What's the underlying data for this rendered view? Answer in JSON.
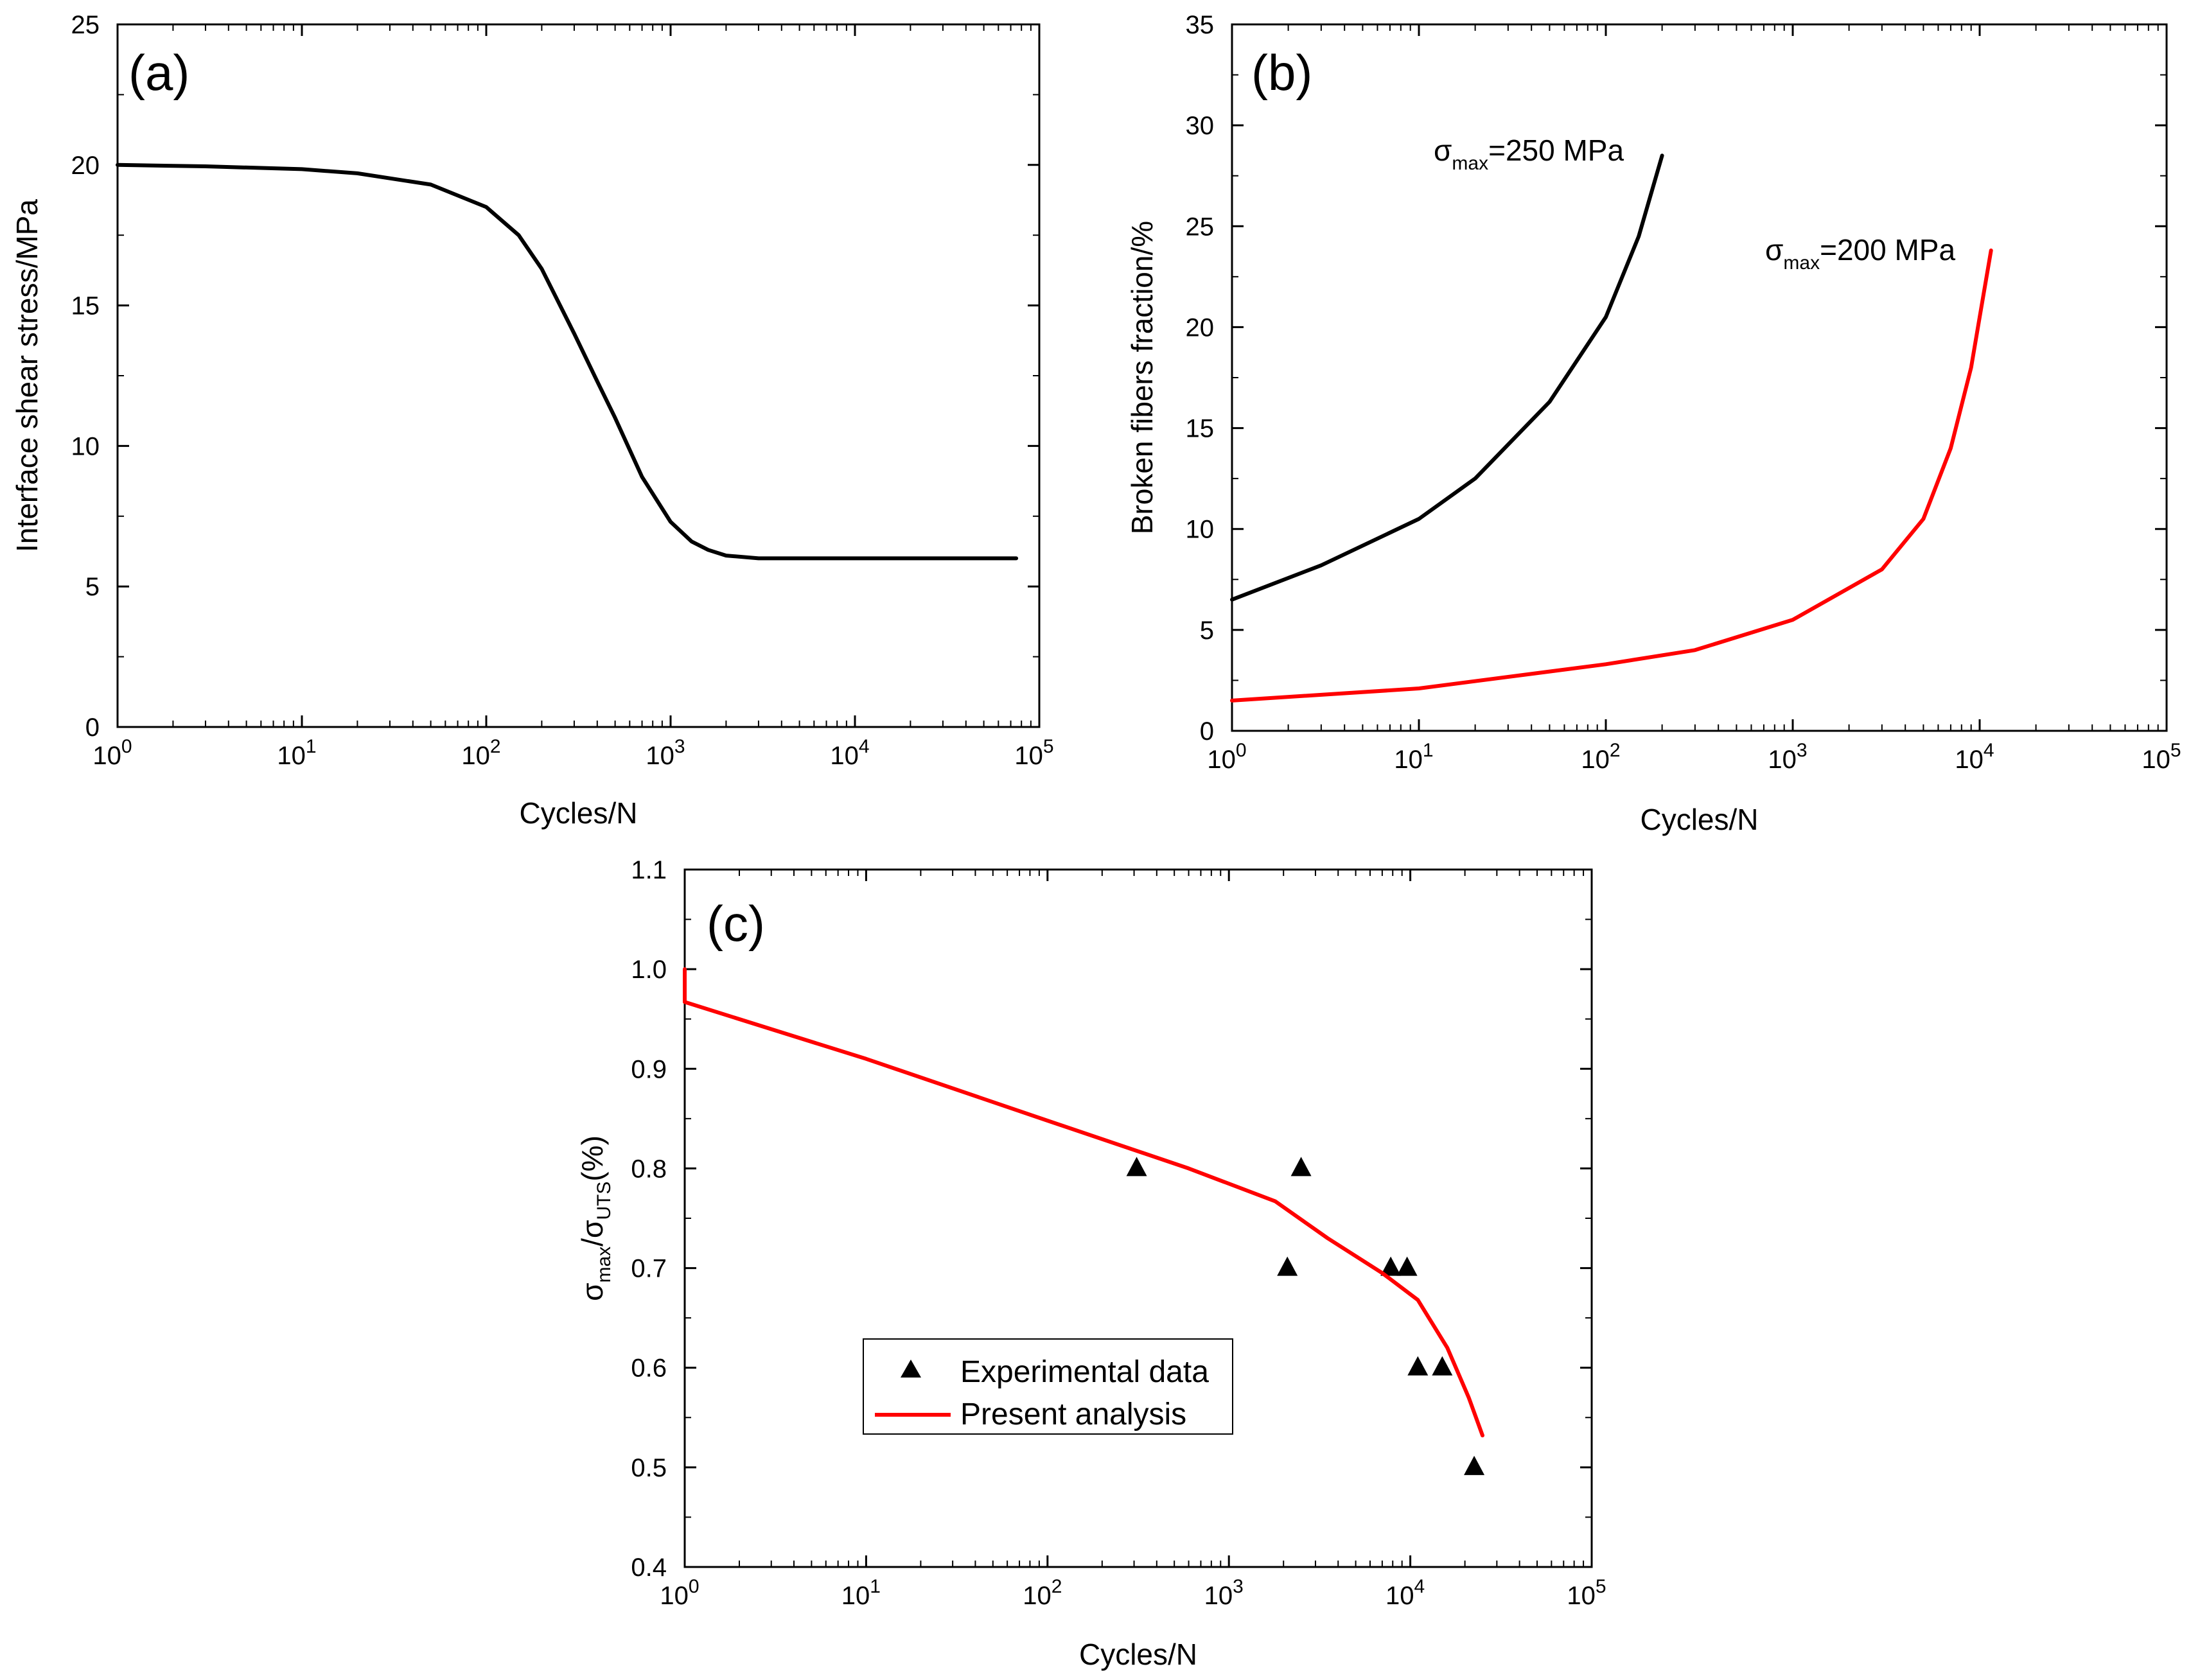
{
  "colors": {
    "black": "#000000",
    "red": "#ff0000",
    "frame": "#000000"
  },
  "chart_data": [
    {
      "type": "line",
      "panel": "(a)",
      "xlabel": "Cycles/N",
      "ylabel": "Interface shear stress/MPa",
      "xscale": "log",
      "xlim": [
        1,
        100000
      ],
      "ylim": [
        0,
        25
      ],
      "yticks": [
        0,
        5,
        10,
        15,
        20,
        25
      ],
      "xtick_exponents": [
        "0",
        "1",
        "2",
        "3",
        "4",
        "5"
      ],
      "series": [
        {
          "name": "interface shear stress",
          "color": "#000000",
          "x": [
            1,
            3,
            10,
            20,
            50,
            100,
            150,
            200,
            300,
            400,
            500,
            700,
            1000,
            1300,
            1600,
            2000,
            3000,
            5000,
            10000,
            30000,
            75000
          ],
          "y": [
            20.0,
            19.95,
            19.85,
            19.7,
            19.3,
            18.5,
            17.5,
            16.3,
            14.0,
            12.3,
            11.0,
            8.9,
            7.3,
            6.6,
            6.3,
            6.1,
            6.0,
            6.0,
            6.0,
            6.0,
            6.0
          ]
        }
      ]
    },
    {
      "type": "line",
      "panel": "(b)",
      "xlabel": "Cycles/N",
      "ylabel": "Broken fibers fraction/%",
      "xscale": "log",
      "xlim": [
        1,
        100000
      ],
      "ylim": [
        0,
        35
      ],
      "yticks": [
        0,
        5,
        10,
        15,
        20,
        25,
        30,
        35
      ],
      "xtick_exponents": [
        "0",
        "1",
        "2",
        "3",
        "4",
        "5"
      ],
      "series": [
        {
          "name": "σmax=250 MPa",
          "color": "#000000",
          "x": [
            1,
            3,
            10,
            20,
            50,
            100,
            150,
            200
          ],
          "y": [
            6.5,
            8.2,
            10.5,
            12.5,
            16.3,
            20.5,
            24.5,
            28.5
          ]
        },
        {
          "name": "σmax=200 MPa",
          "color": "#ff0000",
          "x": [
            1,
            10,
            100,
            300,
            1000,
            3000,
            5000,
            7000,
            9000,
            10000,
            11500
          ],
          "y": [
            1.5,
            2.1,
            3.3,
            4.0,
            5.5,
            8.0,
            10.5,
            14.0,
            18.0,
            20.5,
            23.8
          ]
        }
      ],
      "annotations": [
        {
          "base": "σ",
          "sub": "max",
          "text": "=250 MPa"
        },
        {
          "base": "σ",
          "sub": "max",
          "text": "=200 MPa"
        }
      ]
    },
    {
      "type": "scatter+line",
      "panel": "(c)",
      "xlabel": "Cycles/N",
      "ylabel_parts": {
        "s1": "σ",
        "sub1": "max",
        "slash": "/σ",
        "sub2": "UTS",
        "tail": "(%)"
      },
      "xscale": "log",
      "xlim": [
        1,
        100000
      ],
      "ylim": [
        0.4,
        1.1
      ],
      "yticks": [
        "0.4",
        "0.5",
        "0.6",
        "0.7",
        "0.8",
        "0.9",
        "1.0",
        "1.1"
      ],
      "xtick_exponents": [
        "0",
        "1",
        "2",
        "3",
        "4",
        "5"
      ],
      "series": [
        {
          "name": "Experimental data",
          "marker": "triangle",
          "color": "#000000",
          "x": [
            310,
            2100,
            2500,
            7800,
            9600,
            11000,
            15000,
            22500
          ],
          "y": [
            0.8,
            0.7,
            0.8,
            0.7,
            0.7,
            0.6,
            0.6,
            0.5
          ]
        },
        {
          "name": "Present analysis",
          "color": "#ff0000",
          "x": [
            1,
            1,
            10,
            100,
            600,
            1800,
            3500,
            7000,
            11000,
            16000,
            21000,
            25000
          ],
          "y": [
            1.0,
            0.967,
            0.91,
            0.848,
            0.8,
            0.767,
            0.73,
            0.695,
            0.668,
            0.62,
            0.57,
            0.532
          ]
        }
      ],
      "legend": {
        "placement": "lower-left",
        "entries": [
          "Experimental data",
          "Present analysis"
        ]
      }
    }
  ]
}
